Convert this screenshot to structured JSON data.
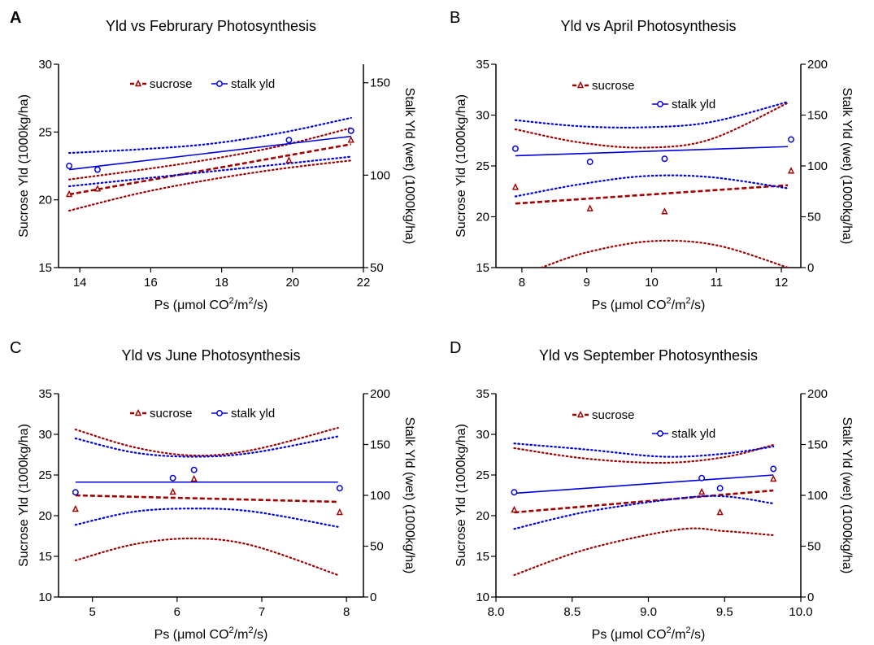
{
  "colors": {
    "sucrose": "#a00000",
    "stalk": "#0000dd",
    "axis": "#000000"
  },
  "chart_data": [
    {
      "type": "scatter",
      "panel_label": "A",
      "title": "Yld  vs Februrary Photosynthesis",
      "xlabel": "Ps (μmol CO",
      "xlabel_sup1": "2",
      "xlabel_mid": "/m",
      "xlabel_sup2": "2",
      "xlabel_end": "/s)",
      "ylabel_left": "Sucrose Yld (1000kg/ha)",
      "ylabel_right": "Stalk Yld (wet) (1000kg/ha)",
      "xlim": [
        13.4,
        22
      ],
      "xticks": [
        14,
        16,
        18,
        20,
        22
      ],
      "ylim_left": [
        15,
        30
      ],
      "yticks_left": [
        15,
        20,
        25,
        30
      ],
      "ylim_right": [
        50,
        160
      ],
      "yticks_right": [
        50,
        100,
        150
      ],
      "legend": {
        "placement": "top",
        "layout": "row",
        "sucrose_label": "sucrose",
        "stalk_label": "stalk yld"
      },
      "series": [
        {
          "name": "sucrose",
          "axis": "left",
          "marker": "triangle",
          "points": [
            [
              13.7,
              20.4
            ],
            [
              14.5,
              20.8
            ],
            [
              19.9,
              22.9
            ],
            [
              21.65,
              24.4
            ]
          ],
          "fit": [
            [
              13.7,
              20.4
            ],
            [
              21.65,
              24.1
            ]
          ],
          "ci_upper": [
            [
              13.7,
              21.5
            ],
            [
              15.7,
              22.2
            ],
            [
              17.7,
              23.0
            ],
            [
              19.7,
              24.0
            ],
            [
              21.65,
              25.3
            ]
          ],
          "ci_lower": [
            [
              13.7,
              19.2
            ],
            [
              15.7,
              20.5
            ],
            [
              17.7,
              21.5
            ],
            [
              19.7,
              22.3
            ],
            [
              21.65,
              22.9
            ]
          ]
        },
        {
          "name": "stalk yld",
          "axis": "right",
          "marker": "circle",
          "points": [
            [
              13.7,
              105
            ],
            [
              14.5,
              103
            ],
            [
              19.9,
              119
            ],
            [
              21.65,
              124
            ]
          ],
          "fit": [
            [
              13.7,
              103
            ],
            [
              21.65,
              121
            ]
          ],
          "ci_upper": [
            [
              13.7,
              112
            ],
            [
              15.7,
              114
            ],
            [
              17.7,
              117
            ],
            [
              19.7,
              123
            ],
            [
              21.65,
              131
            ]
          ],
          "ci_lower": [
            [
              13.7,
              94
            ],
            [
              15.7,
              98
            ],
            [
              17.7,
              102
            ],
            [
              19.7,
              106
            ],
            [
              21.65,
              110
            ]
          ]
        }
      ]
    },
    {
      "type": "scatter",
      "panel_label": "B",
      "title": "Yld  vs April Photosynthesis",
      "xlabel": "Ps (μmol CO",
      "xlabel_sup1": "2",
      "xlabel_mid": "/m",
      "xlabel_sup2": "2",
      "xlabel_end": "/s)",
      "ylabel_left": "Sucrose Yld (1000kg/ha)",
      "ylabel_right": "Stalk Yld (wet) (1000kg/ha)",
      "xlim": [
        7.6,
        12.3
      ],
      "xticks": [
        8,
        9,
        10,
        11,
        12
      ],
      "ylim_left": [
        15,
        35
      ],
      "yticks_left": [
        15,
        20,
        25,
        30,
        35
      ],
      "ylim_right": [
        0,
        200
      ],
      "yticks_right": [
        0,
        50,
        100,
        150,
        200
      ],
      "legend": {
        "placement": "top",
        "layout": "stacked",
        "sucrose_label": "sucrose",
        "stalk_label": "stalk yld"
      },
      "series": [
        {
          "name": "sucrose",
          "axis": "left",
          "marker": "triangle",
          "points": [
            [
              7.9,
              22.9
            ],
            [
              9.05,
              20.8
            ],
            [
              10.2,
              20.5
            ],
            [
              12.15,
              24.5
            ]
          ],
          "fit": [
            [
              7.9,
              21.3
            ],
            [
              12.1,
              23.1
            ]
          ],
          "ci_upper": [
            [
              7.9,
              28.6
            ],
            [
              8.9,
              27.3
            ],
            [
              9.9,
              26.8
            ],
            [
              10.9,
              27.6
            ],
            [
              12.1,
              31.2
            ]
          ],
          "ci_lower": [
            [
              8.3,
              15.0
            ],
            [
              9.0,
              16.5
            ],
            [
              10.0,
              17.6
            ],
            [
              11.0,
              17.2
            ],
            [
              12.1,
              15.0
            ]
          ]
        },
        {
          "name": "stalk yld",
          "axis": "right",
          "marker": "circle",
          "points": [
            [
              7.9,
              117
            ],
            [
              9.05,
              104
            ],
            [
              10.2,
              107
            ],
            [
              12.15,
              126
            ]
          ],
          "fit": [
            [
              7.9,
              110
            ],
            [
              12.1,
              119
            ]
          ],
          "ci_upper": [
            [
              7.9,
              145
            ],
            [
              8.9,
              139
            ],
            [
              9.9,
              138
            ],
            [
              10.9,
              143
            ],
            [
              12.1,
              163
            ]
          ],
          "ci_lower": [
            [
              7.9,
              70
            ],
            [
              8.9,
              82
            ],
            [
              9.9,
              90
            ],
            [
              10.9,
              89
            ],
            [
              12.1,
              78
            ]
          ]
        }
      ]
    },
    {
      "type": "scatter",
      "panel_label": "C",
      "title": "Yld  vs June Photosynthesis",
      "xlabel": "Ps (μmol CO",
      "xlabel_sup1": "2",
      "xlabel_mid": "/m",
      "xlabel_sup2": "2",
      "xlabel_end": "/s)",
      "ylabel_left": "Sucrose Yld (1000kg/ha)",
      "ylabel_right": "Stalk Yld (wet) (1000kg/ha)",
      "xlim": [
        4.6,
        8.2
      ],
      "xticks": [
        5,
        6,
        7,
        8
      ],
      "ylim_left": [
        10,
        35
      ],
      "yticks_left": [
        10,
        15,
        20,
        25,
        30,
        35
      ],
      "ylim_right": [
        0,
        200
      ],
      "yticks_right": [
        0,
        50,
        100,
        150,
        200
      ],
      "legend": {
        "placement": "top",
        "layout": "row",
        "sucrose_label": "sucrose",
        "stalk_label": "stalk yld"
      },
      "series": [
        {
          "name": "sucrose",
          "axis": "left",
          "marker": "triangle",
          "points": [
            [
              4.8,
              20.8
            ],
            [
              5.95,
              22.9
            ],
            [
              6.2,
              24.5
            ],
            [
              7.92,
              20.4
            ]
          ],
          "fit": [
            [
              4.8,
              22.5
            ],
            [
              7.9,
              21.7
            ]
          ],
          "ci_upper": [
            [
              4.8,
              30.6
            ],
            [
              5.5,
              28.4
            ],
            [
              6.2,
              27.4
            ],
            [
              6.9,
              28.1
            ],
            [
              7.9,
              30.8
            ]
          ],
          "ci_lower": [
            [
              4.8,
              14.5
            ],
            [
              5.5,
              16.5
            ],
            [
              6.2,
              17.2
            ],
            [
              6.9,
              16.3
            ],
            [
              7.9,
              12.7
            ]
          ]
        },
        {
          "name": "stalk yld",
          "axis": "right",
          "marker": "circle",
          "points": [
            [
              4.8,
              103
            ],
            [
              5.95,
              117
            ],
            [
              6.2,
              125
            ],
            [
              7.92,
              107
            ]
          ],
          "fit": [
            [
              4.8,
              113
            ],
            [
              7.9,
              113
            ]
          ],
          "ci_upper": [
            [
              4.8,
              156
            ],
            [
              5.5,
              142
            ],
            [
              6.2,
              138
            ],
            [
              6.9,
              142
            ],
            [
              7.9,
              158
            ]
          ],
          "ci_lower": [
            [
              4.8,
              71
            ],
            [
              5.5,
              84
            ],
            [
              6.2,
              87
            ],
            [
              6.9,
              84
            ],
            [
              7.9,
              69
            ]
          ]
        }
      ]
    },
    {
      "type": "scatter",
      "panel_label": "D",
      "title": "Yld  vs September Photosynthesis",
      "xlabel": "Ps (μmol CO",
      "xlabel_sup1": "2",
      "xlabel_mid": "/m",
      "xlabel_sup2": "2",
      "xlabel_end": "/s)",
      "ylabel_left": "Sucrose Yld (1000kg/ha)",
      "ylabel_right": "Stalk Yld (wet) (1000kg/ha)",
      "xlim": [
        8.0,
        10.0
      ],
      "xticks": [
        8.0,
        8.5,
        9.0,
        9.5,
        10.0
      ],
      "xtick_decimals": 1,
      "ylim_left": [
        10,
        35
      ],
      "yticks_left": [
        10,
        15,
        20,
        25,
        30,
        35
      ],
      "ylim_right": [
        0,
        200
      ],
      "yticks_right": [
        0,
        50,
        100,
        150,
        200
      ],
      "legend": {
        "placement": "top",
        "layout": "stacked",
        "sucrose_label": "sucrose",
        "stalk_label": "stalk yld"
      },
      "series": [
        {
          "name": "sucrose",
          "axis": "left",
          "marker": "triangle",
          "points": [
            [
              8.12,
              20.7
            ],
            [
              9.35,
              22.9
            ],
            [
              9.47,
              20.4
            ],
            [
              9.82,
              24.5
            ]
          ],
          "fit": [
            [
              8.12,
              20.4
            ],
            [
              9.82,
              23.1
            ]
          ],
          "ci_upper": [
            [
              8.12,
              28.3
            ],
            [
              8.6,
              27.0
            ],
            [
              9.1,
              26.5
            ],
            [
              9.5,
              27.2
            ],
            [
              9.82,
              28.7
            ]
          ],
          "ci_lower": [
            [
              8.12,
              12.7
            ],
            [
              8.6,
              15.9
            ],
            [
              9.2,
              18.3
            ],
            [
              9.5,
              18.1
            ],
            [
              9.82,
              17.6
            ]
          ]
        },
        {
          "name": "stalk yld",
          "axis": "right",
          "marker": "circle",
          "points": [
            [
              8.12,
              103
            ],
            [
              9.35,
              117
            ],
            [
              9.47,
              107
            ],
            [
              9.82,
              126
            ]
          ],
          "fit": [
            [
              8.12,
              102
            ],
            [
              9.82,
              120
            ]
          ],
          "ci_upper": [
            [
              8.12,
              151
            ],
            [
              8.6,
              145
            ],
            [
              9.1,
              138
            ],
            [
              9.5,
              141
            ],
            [
              9.82,
              148
            ]
          ],
          "ci_lower": [
            [
              8.12,
              67
            ],
            [
              8.6,
              84
            ],
            [
              9.2,
              97
            ],
            [
              9.5,
              99
            ],
            [
              9.82,
              92
            ]
          ]
        }
      ]
    }
  ]
}
